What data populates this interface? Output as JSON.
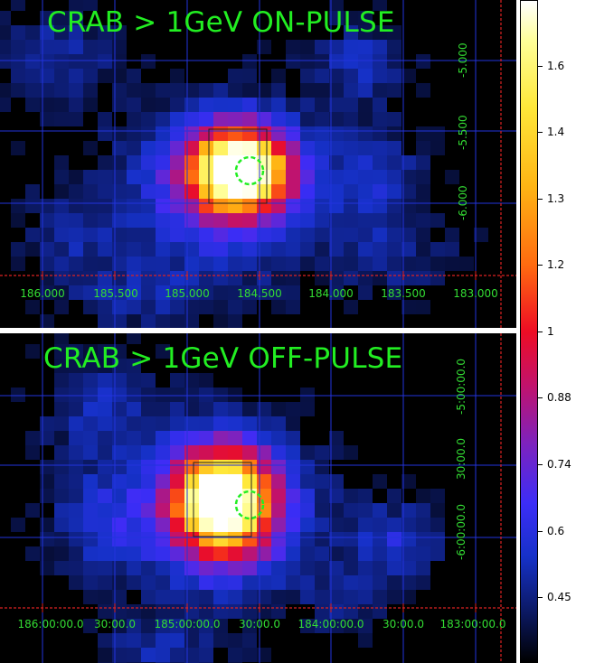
{
  "panels": {
    "top": {
      "title": "CRAB > 1GeV ON-PULSE",
      "ra_ticks": [
        "186.000",
        "185.500",
        "185.000",
        "184.500",
        "184.000",
        "183.500",
        "183.000"
      ],
      "dec_ticks": [
        "-5.000",
        "-5.500",
        "-6.000"
      ]
    },
    "bottom": {
      "title": "CRAB > 1GeV OFF-PULSE",
      "ra_ticks": [
        "186:00:00.0",
        "30:00.0",
        "185:00:00.0",
        "30:00.0",
        "184:00:00.0",
        "30:00.0",
        "183:00:00.0"
      ],
      "dec_ticks": [
        "-5:00:00.0",
        "30:00.0",
        "-6:00:00.0"
      ]
    }
  },
  "colorbar": {
    "labels": [
      "1.6",
      "1.4",
      "1.3",
      "1.2",
      "1",
      "0.88",
      "0.74",
      "0.6",
      "0.45"
    ],
    "colormap": [
      "#000000",
      "#0c1a68",
      "#1631c8",
      "#3c2df7",
      "#7d22be",
      "#c2126b",
      "#ee0d24",
      "#ff6a10",
      "#ffb514",
      "#ffe83a",
      "#ffff99",
      "#ffffff"
    ]
  },
  "colors": {
    "title_green": "#22ee22",
    "tick_green": "#33dd33",
    "grid_blue": "#2233dd",
    "axis_red": "#dd2222",
    "marker_green": "#22ee22"
  }
}
